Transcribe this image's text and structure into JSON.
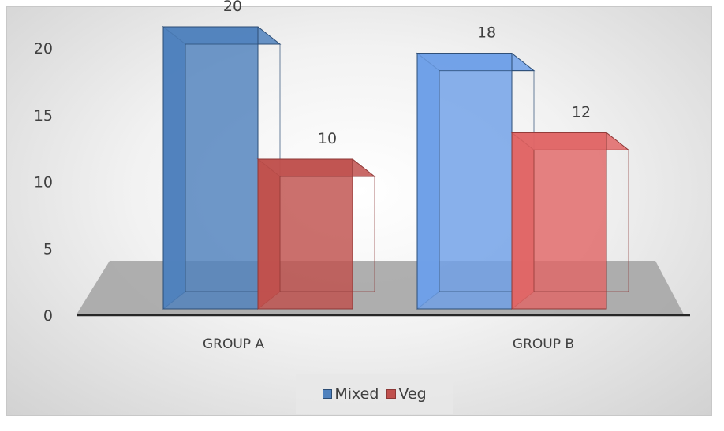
{
  "chart_data": {
    "type": "bar",
    "style": "3d-clustered",
    "categories": [
      "GROUP A",
      "GROUP B"
    ],
    "series": [
      {
        "name": "Mixed",
        "values": [
          20,
          18
        ],
        "colors": [
          "#4f81bd",
          "#6fa0e8"
        ],
        "edge": "#2c4d75"
      },
      {
        "name": "Veg",
        "values": [
          10,
          12
        ],
        "colors": [
          "#c0504d",
          "#e06666"
        ],
        "edge": "#8c3836"
      }
    ],
    "ylim": [
      0,
      20
    ],
    "yticks": [
      "0",
      "5",
      "10",
      "15",
      "20"
    ],
    "data_labels": true,
    "legend": "bottom",
    "floor_color": "#a6a6a6"
  }
}
